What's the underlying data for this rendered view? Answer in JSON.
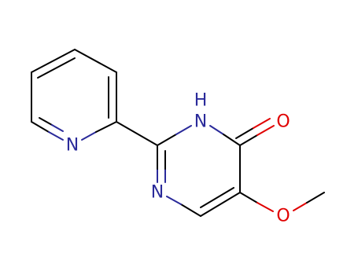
{
  "atoms": [
    {
      "label": "N"
    },
    {
      "label": "N"
    },
    {
      "label": "H"
    },
    {
      "label": "O"
    },
    {
      "label": "N"
    },
    {
      "label": "O"
    }
  ]
}
